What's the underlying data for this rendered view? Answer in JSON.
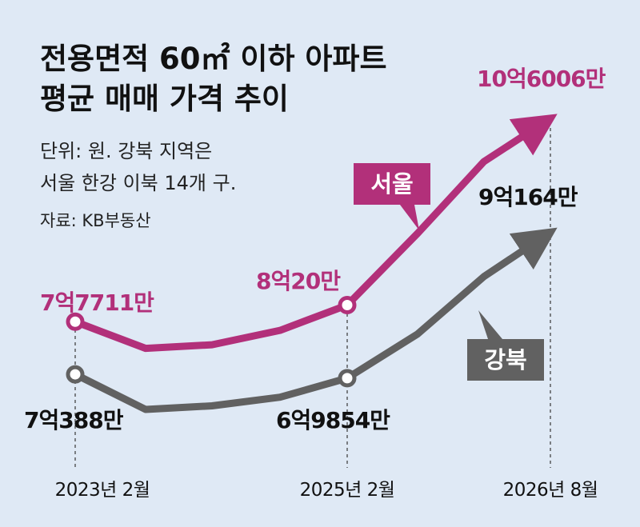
{
  "chart_data": {
    "type": "line",
    "title_line1": "전용면적 60㎡ 이하 아파트",
    "title_line2": "평균 매매 가격 추이",
    "note_line1": "단위: 원. 강북 지역은",
    "note_line2": "서울 한강 이북 14개 구.",
    "source": "자료: KB부동산",
    "x_ticks": [
      "2023년 2월",
      "2025년 2월",
      "2026년 8월"
    ],
    "series": [
      {
        "name": "서울",
        "color": "#b2307a",
        "values": [
          777110000,
          740000000,
          745000000,
          765000000,
          800200000,
          900000000,
          1000000000,
          1060060000
        ],
        "labels": [
          {
            "index": 0,
            "text": "7억7711만"
          },
          {
            "index": 4,
            "text": "8억20만"
          },
          {
            "index": 7,
            "text": "10억6006만"
          }
        ]
      },
      {
        "name": "강북",
        "color": "#616161",
        "values": [
          703880000,
          655000000,
          660000000,
          672000000,
          698540000,
          760000000,
          840000000,
          901640000
        ],
        "labels": [
          {
            "index": 0,
            "text": "7억388만"
          },
          {
            "index": 4,
            "text": "6억9854만"
          },
          {
            "index": 7,
            "text": "9억164만"
          }
        ]
      }
    ]
  }
}
